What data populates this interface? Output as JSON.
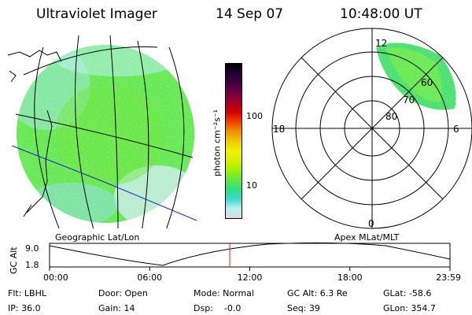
{
  "header": {
    "instrument": "Ultraviolet Imager",
    "date": "14 Sep 07",
    "time": "10:48:00 UT"
  },
  "colorbar": {
    "unit_label": "photon cm⁻²s⁻¹",
    "tick_labels": [
      "100",
      "10"
    ],
    "colors": [
      "#dcdcdc",
      "#b8f0f0",
      "#40d8d0",
      "#30e080",
      "#60e840",
      "#a0f000",
      "#d8f000",
      "#f0f000",
      "#f0c800",
      "#f09000",
      "#f04000",
      "#d00000",
      "#a00030",
      "#700040",
      "#400040",
      "#200030",
      "#000000"
    ]
  },
  "geo_panel": {
    "caption": "Geographic Lat/Lon"
  },
  "polar_panel": {
    "caption": "Apex MLat/MLT",
    "mlt_labels": [
      "12",
      "18",
      "6",
      "0"
    ],
    "lat_labels": [
      "80",
      "70",
      "60"
    ]
  },
  "alt_plot": {
    "axis_label": "GC Alt",
    "y_ticks": [
      "9.0",
      "1.8"
    ],
    "x_ticks": [
      "00:00",
      "06:00",
      "12:00",
      "18:00",
      "23:59"
    ],
    "marker_time_hours": 10.8
  },
  "footer": {
    "flt": "Flt: LBHL",
    "ip": "IP: 36.0",
    "door": "Door: Open",
    "gain": "Gain: 14",
    "mode": "Mode: Normal",
    "dsp": "Dsp:    -0.0",
    "gc_alt": "GC Alt: 6.3 Re",
    "seq": "Seq: 39",
    "glat": "GLat: -58.6",
    "glon": "GLon: 354.7"
  }
}
